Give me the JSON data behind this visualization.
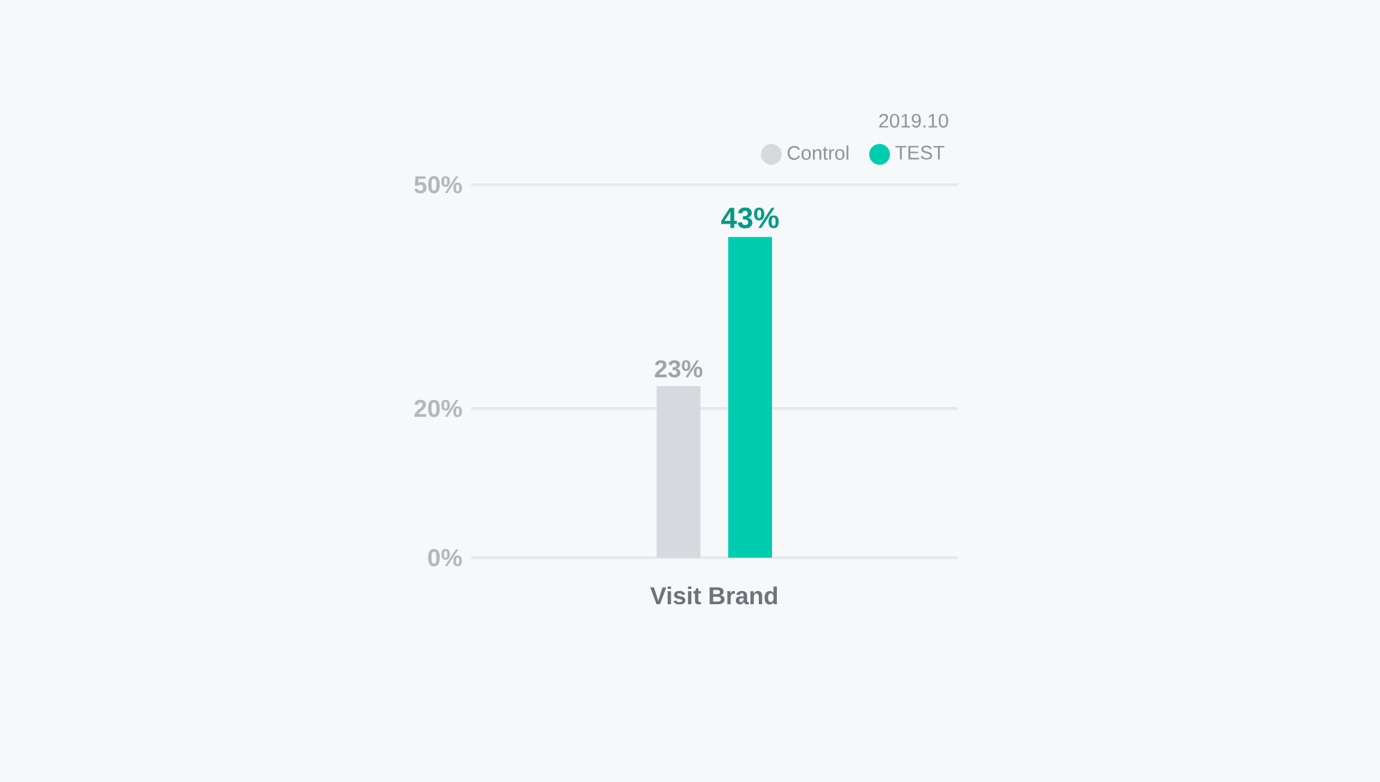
{
  "chart_data": {
    "type": "bar",
    "subtitle": "2019.10",
    "categories": [
      "Visit Brand"
    ],
    "series": [
      {
        "name": "Control",
        "color": "#d6dade",
        "values": [
          23
        ],
        "value_labels": [
          "23%"
        ]
      },
      {
        "name": "TEST",
        "color": "#00cdb0",
        "values": [
          43
        ],
        "value_labels": [
          "43%"
        ]
      }
    ],
    "ylim": [
      0,
      50
    ],
    "yticks": [
      {
        "value": 0,
        "label": "0%"
      },
      {
        "value": 20,
        "label": "20%"
      },
      {
        "value": 50,
        "label": "50%"
      }
    ],
    "grid": "y",
    "legend": "top right"
  }
}
